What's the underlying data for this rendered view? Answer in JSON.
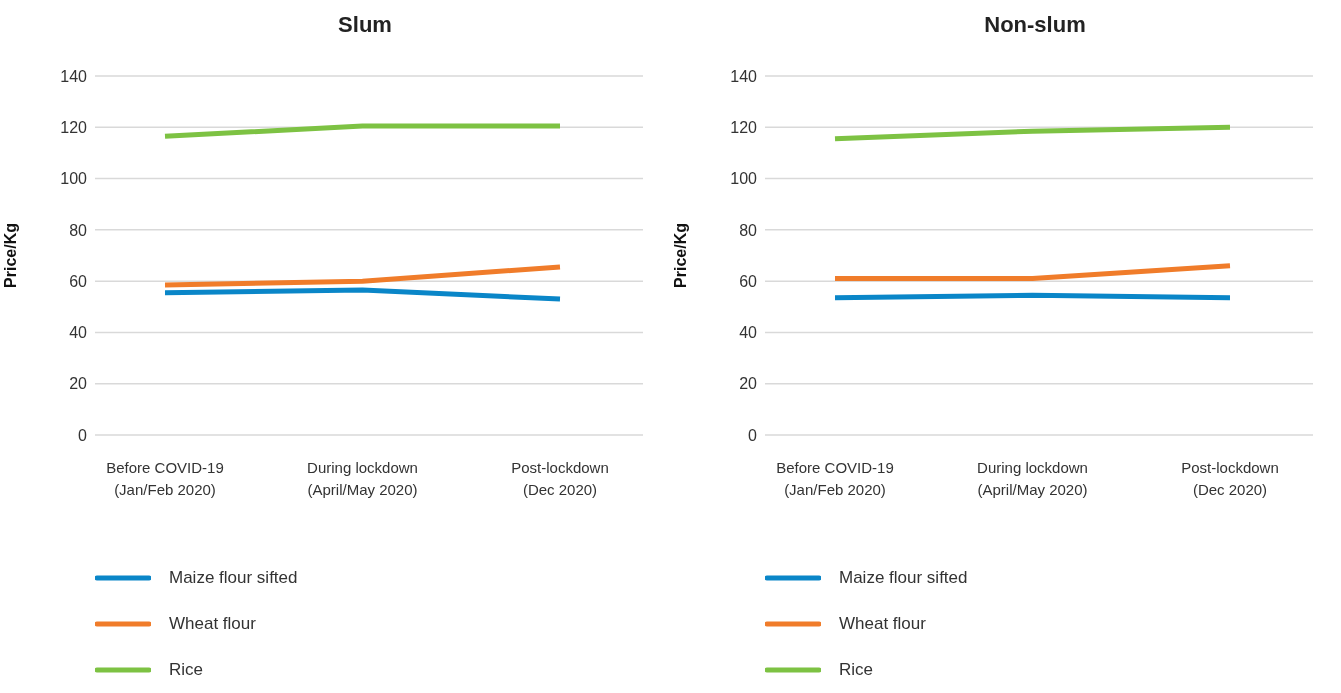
{
  "chart_data": [
    {
      "type": "line",
      "title": "Slum",
      "ylabel": "Price/Kg",
      "categories": [
        "Before COVID-19\n(Jan/Feb 2020)",
        "During lockdown\n(April/May 2020)",
        "Post-lockdown\n(Dec 2020)"
      ],
      "series": [
        {
          "name": "Maize flour sifted",
          "color": "#0a86c8",
          "values": [
            55.5,
            56.5,
            53
          ]
        },
        {
          "name": "Wheat flour",
          "color": "#f07c2a",
          "values": [
            58.5,
            60,
            65.5
          ]
        },
        {
          "name": "Rice",
          "color": "#7dc243",
          "values": [
            116.5,
            120.5,
            120.5
          ]
        }
      ],
      "ylim": [
        0,
        140
      ],
      "yticks": [
        0,
        20,
        40,
        60,
        80,
        100,
        120,
        140
      ],
      "grid": "y",
      "legend": "bottom",
      "marker": "none"
    },
    {
      "type": "line",
      "title": "Non-slum",
      "ylabel": "Price/Kg",
      "categories": [
        "Before COVID-19\n(Jan/Feb 2020)",
        "During lockdown\n(April/May 2020)",
        "Post-lockdown\n(Dec 2020)"
      ],
      "series": [
        {
          "name": "Maize flour sifted",
          "color": "#0a86c8",
          "values": [
            53.5,
            54.5,
            53.5
          ]
        },
        {
          "name": "Wheat flour",
          "color": "#f07c2a",
          "values": [
            61,
            61,
            66
          ]
        },
        {
          "name": "Rice",
          "color": "#7dc243",
          "values": [
            115.5,
            118.5,
            120
          ]
        }
      ],
      "ylim": [
        0,
        140
      ],
      "yticks": [
        0,
        20,
        40,
        60,
        80,
        100,
        120,
        140
      ],
      "grid": "y",
      "legend": "bottom",
      "marker": "none"
    }
  ]
}
